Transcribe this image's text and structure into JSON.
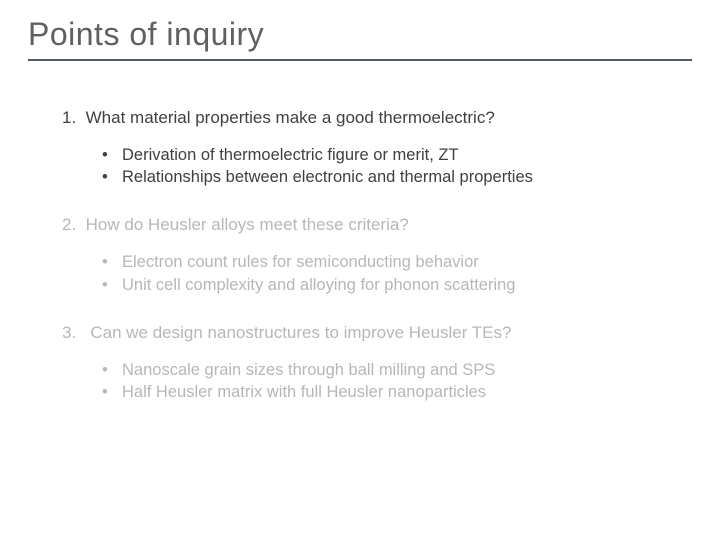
{
  "title": "Points of inquiry",
  "colors": {
    "title": "#606062",
    "rule": "#4a5d6b",
    "active_text": "#3f3f3f",
    "dim_text": "#b7b7b7",
    "background": "#ffffff"
  },
  "points": [
    {
      "number": "1.",
      "question": "What material properties make a good thermoelectric?",
      "active": true,
      "bullets": [
        "Derivation of thermoelectric figure or merit, ZT",
        "Relationships between electronic and thermal properties"
      ]
    },
    {
      "number": "2.",
      "question": "How do Heusler alloys meet these criteria?",
      "active": false,
      "bullets": [
        "Electron count rules for semiconducting behavior",
        "Unit cell complexity and alloying for phonon scattering"
      ]
    },
    {
      "number": "3.",
      "question": "Can we design nanostructures to improve Heusler TEs?",
      "active": false,
      "bullets": [
        "Nanoscale grain sizes through ball milling and SPS",
        "Half Heusler matrix with full Heusler nanoparticles"
      ]
    }
  ]
}
